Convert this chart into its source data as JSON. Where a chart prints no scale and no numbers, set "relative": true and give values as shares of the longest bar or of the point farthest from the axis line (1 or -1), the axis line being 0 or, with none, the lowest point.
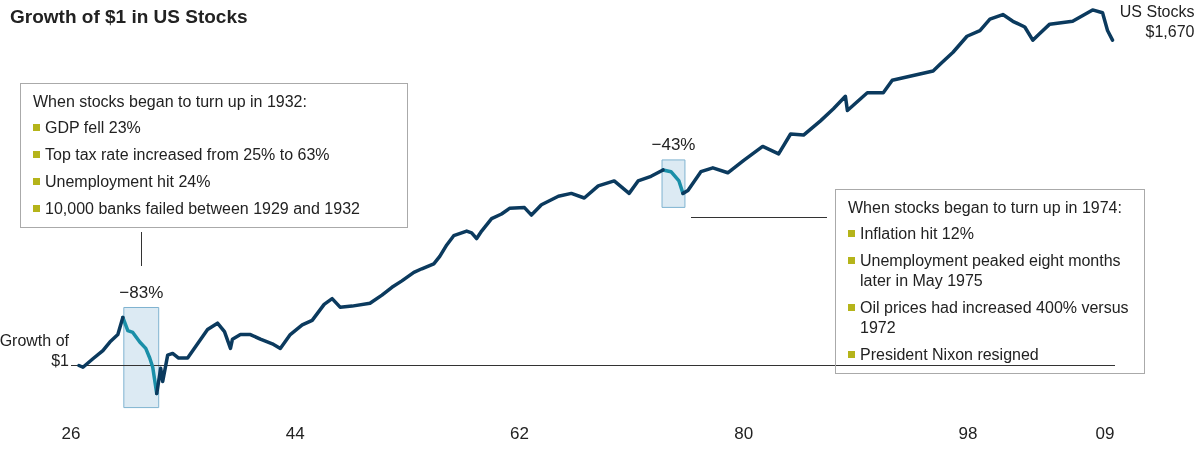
{
  "chart_data": {
    "type": "line",
    "title": "Growth of $1 in US Stocks",
    "relative": true,
    "legend": false,
    "tick_labels": "x",
    "marker": "none",
    "line_style": "solid",
    "xlim": [
      1926,
      2009.8
    ],
    "xticks": [
      {
        "value": 1926,
        "label": "26"
      },
      {
        "value": 1944,
        "label": "44"
      },
      {
        "value": 1962,
        "label": "62"
      },
      {
        "value": 1980,
        "label": "80"
      },
      {
        "value": 1998,
        "label": "98"
      },
      {
        "value": 2009,
        "label": "09"
      }
    ],
    "x": [
      1926.64,
      1926.96,
      1927.76,
      1928.56,
      1929.12,
      1929.76,
      1930.16,
      1930.56,
      1930.96,
      1931.52,
      1932.0,
      1932.32,
      1932.56,
      1932.88,
      1933.2,
      1933.36,
      1933.76,
      1934.16,
      1934.64,
      1935.36,
      1936.16,
      1936.96,
      1937.76,
      1938.32,
      1938.8,
      1938.96,
      1939.6,
      1940.4,
      1941.2,
      1942.16,
      1942.8,
      1943.6,
      1944.56,
      1945.36,
      1946.32,
      1946.96,
      1947.6,
      1948.56,
      1950.0,
      1950.96,
      1951.76,
      1952.56,
      1953.52,
      1954.16,
      1955.12,
      1955.6,
      1956.16,
      1956.72,
      1957.76,
      1958.16,
      1958.56,
      1958.96,
      1959.76,
      1960.56,
      1961.2,
      1962.4,
      1962.96,
      1963.76,
      1965.12,
      1966.16,
      1967.2,
      1968.32,
      1969.6,
      1970.8,
      1971.52,
      1972.56,
      1973.52,
      1974.16,
      1974.8,
      1975.12,
      1975.52,
      1976.56,
      1977.52,
      1978.72,
      1980.0,
      1981.52,
      1982.8,
      1983.76,
      1984.8,
      1986.16,
      1987.2,
      1988.16,
      1988.32,
      1989.92,
      1991.2,
      1991.92,
      1995.2,
      1995.76,
      1996.8,
      1997.92,
      1998.96,
      1999.76,
      2000.8,
      2001.6,
      2002.56,
      2003.2,
      2003.76,
      2004.56,
      2006.4,
      2008.0,
      2008.8,
      2009.2,
      2009.6
    ],
    "series": [
      {
        "color": "#0b3a5e",
        "values": [
          0,
          -0.005,
          0.019,
          0.042,
          0.066,
          0.087,
          0.135,
          null,
          null,
          null,
          null,
          null,
          null,
          -0.079,
          -0.008,
          -0.045,
          0.029,
          0.034,
          0.021,
          0.021,
          0.061,
          0.101,
          0.119,
          0.095,
          0.048,
          0.074,
          0.087,
          0.087,
          0.074,
          0.061,
          0.048,
          0.087,
          0.114,
          0.127,
          0.172,
          0.188,
          0.164,
          0.167,
          0.175,
          0.198,
          0.22,
          0.238,
          0.262,
          0.272,
          0.286,
          0.307,
          0.339,
          0.365,
          0.378,
          0.373,
          0.357,
          0.378,
          0.413,
          0.426,
          0.442,
          0.444,
          0.423,
          0.452,
          0.476,
          0.484,
          0.471,
          0.505,
          0.519,
          0.484,
          0.519,
          0.532,
          0.55,
          null,
          null,
          0.484,
          0.492,
          0.545,
          0.556,
          0.542,
          0.577,
          0.616,
          0.595,
          0.651,
          0.648,
          0.688,
          0.722,
          0.757,
          0.717,
          0.767,
          0.767,
          0.802,
          0.828,
          0.847,
          0.881,
          0.926,
          0.942,
          0.974,
          0.987,
          0.968,
          0.952,
          0.915,
          0.934,
          0.96,
          0.968,
          1,
          0.992,
          0.942,
          0.915
        ]
      },
      {
        "color": "#1a8fa8",
        "values": [
          null,
          null,
          null,
          null,
          null,
          null,
          0.135,
          0.098,
          0.093,
          0.066,
          0.048,
          0.021,
          -0.005,
          -0.079,
          null,
          null,
          null,
          null,
          null,
          null,
          null,
          null,
          null,
          null,
          null,
          null,
          null,
          null,
          null,
          null,
          null,
          null,
          null,
          null,
          null,
          null,
          null,
          null,
          null,
          null,
          null,
          null,
          null,
          null,
          null,
          null,
          null,
          null,
          null,
          null,
          null,
          null,
          null,
          null,
          null,
          null,
          null,
          null,
          null,
          null,
          null,
          null,
          null,
          null,
          null,
          null,
          0.55,
          0.545,
          0.519,
          0.484,
          null,
          null,
          null,
          null,
          null,
          null,
          null,
          null,
          null,
          null,
          null,
          null,
          null,
          null,
          null,
          null,
          null,
          null,
          null,
          null,
          null,
          null,
          null,
          null,
          null,
          null,
          null,
          null,
          null,
          null,
          null,
          null,
          null
        ]
      }
    ],
    "ref_lines": [
      {
        "axis": "y",
        "value": 0,
        "color": "#333333"
      }
    ],
    "bands": [
      {
        "axis": "x",
        "from": 1930.24,
        "to": 1933.04,
        "label": "−83%",
        "color": "#dceaf3"
      },
      {
        "axis": "x",
        "from": 1973.44,
        "to": 1975.28,
        "label": "−43%",
        "color": "#dceaf3"
      }
    ],
    "annotations": [
      "When stocks began to turn up in 1932:",
      "GDP fell 23%",
      "Top tax rate increased from 25% to 63%",
      "Unemployment hit 24%",
      "10,000 banks failed between 1929 and 1932",
      "When stocks began to turn up in 1974:",
      "Inflation hit 12%",
      "Unemployment peaked eight months later in May 1975",
      "Oil prices had increased 400% versus 1972",
      "President Nixon resigned",
      {
        "text": "Growth of $1",
        "x": 1926.64,
        "y": 0
      },
      {
        "text": "US Stocks $1,670",
        "x": 2009.6,
        "y": 0.915
      }
    ]
  }
}
